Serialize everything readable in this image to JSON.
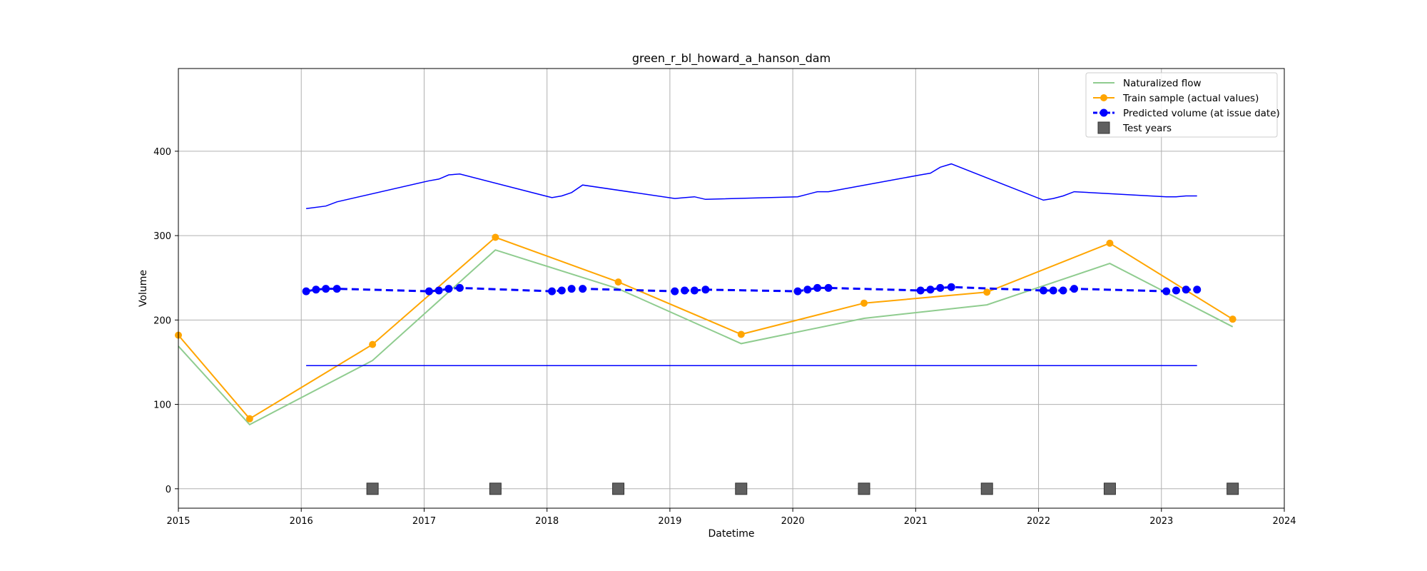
{
  "chart_data": {
    "type": "line",
    "title": "green_r_bl_howard_a_hanson_dam",
    "xlabel": "Datetime",
    "ylabel": "Volume",
    "xlim": [
      2015.0,
      2024.0
    ],
    "ylim": [
      -23,
      498
    ],
    "x_ticks": [
      2015,
      2016,
      2017,
      2018,
      2019,
      2020,
      2021,
      2022,
      2023,
      2024
    ],
    "y_ticks": [
      0,
      100,
      200,
      300,
      400
    ],
    "grid": true,
    "legend_position": "upper right",
    "colors": {
      "naturalized": "#8fcc8f",
      "train": "#ffa500",
      "predicted": "#0000ff",
      "test": "#606060"
    },
    "series": [
      {
        "name": "Naturalized flow",
        "kind": "line",
        "x": [
          2015.0,
          2015.58,
          2016.58,
          2017.58,
          2018.58,
          2019.58,
          2020.58,
          2021.58,
          2022.58,
          2023.58
        ],
        "y": [
          169,
          76,
          152,
          283,
          237,
          172,
          202,
          218,
          267,
          192
        ]
      },
      {
        "name": "Train sample (actual values)",
        "kind": "line-marker",
        "x": [
          2015.0,
          2015.58,
          2016.58,
          2017.58,
          2018.58,
          2019.58,
          2020.58,
          2021.58,
          2022.58,
          2023.58
        ],
        "y": [
          182,
          83,
          171,
          298,
          245,
          183,
          220,
          233,
          291,
          201
        ]
      },
      {
        "name": "Predicted volume (at issue date)",
        "kind": "dashed-marker",
        "x": [
          2016.04,
          2016.12,
          2016.2,
          2016.29,
          2017.04,
          2017.12,
          2017.2,
          2017.29,
          2018.04,
          2018.12,
          2018.2,
          2018.29,
          2019.04,
          2019.12,
          2019.2,
          2019.29,
          2020.04,
          2020.12,
          2020.2,
          2020.29,
          2021.04,
          2021.12,
          2021.2,
          2021.29,
          2022.04,
          2022.12,
          2022.2,
          2022.29,
          2023.04,
          2023.12,
          2023.2,
          2023.29
        ],
        "y": [
          234,
          236,
          237,
          237,
          234,
          235,
          237,
          238,
          234,
          235,
          237,
          237,
          234,
          235,
          235,
          236,
          234,
          236,
          238,
          238,
          235,
          236,
          238,
          239,
          235,
          235,
          235,
          237,
          234,
          235,
          236,
          236
        ]
      },
      {
        "name": "",
        "kind": "line-thin",
        "x": [
          2016.04,
          2016.2,
          2016.29,
          2017.04,
          2017.12,
          2017.2,
          2017.29,
          2018.04,
          2018.12,
          2018.2,
          2018.29,
          2019.04,
          2019.12,
          2019.2,
          2019.29,
          2020.04,
          2020.12,
          2020.2,
          2020.29,
          2021.04,
          2021.12,
          2021.2,
          2021.29,
          2022.04,
          2022.12,
          2022.2,
          2022.29,
          2023.04,
          2023.12,
          2023.2,
          2023.29
        ],
        "y": [
          332,
          335,
          340,
          365,
          367,
          372,
          373,
          345,
          347,
          351,
          360,
          344,
          345,
          346,
          343,
          346,
          349,
          352,
          352,
          372,
          374,
          381,
          385,
          342,
          344,
          347,
          352,
          346,
          346,
          347,
          347
        ]
      },
      {
        "name": "",
        "kind": "line-thin",
        "x": [
          2016.04,
          2023.29
        ],
        "y": [
          146,
          146
        ]
      },
      {
        "name": "Test years",
        "kind": "square-marker",
        "x": [
          2016.58,
          2017.58,
          2018.58,
          2019.58,
          2020.58,
          2021.58,
          2022.58,
          2023.58
        ],
        "y": [
          0,
          0,
          0,
          0,
          0,
          0,
          0,
          0
        ]
      }
    ]
  }
}
